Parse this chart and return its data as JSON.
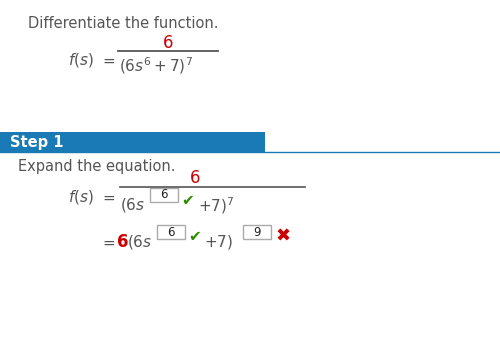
{
  "title_text": "Differentiate the function.",
  "step1_label": "Step 1",
  "step1_desc": "Expand the equation.",
  "bg_color": "#ffffff",
  "step_banner_color": "#1a7ab5",
  "step_banner_text_color": "#ffffff",
  "step_border_color": "#1a7ab5",
  "gray_text_color": "#555555",
  "red_color": "#cc0000",
  "green_color": "#2e8b00",
  "black_color": "#222222",
  "box_border_color": "#aaaaaa",
  "title_fontsize": 10.5,
  "body_fontsize": 10.5,
  "math_fontsize": 12,
  "small_fontsize": 8.5
}
